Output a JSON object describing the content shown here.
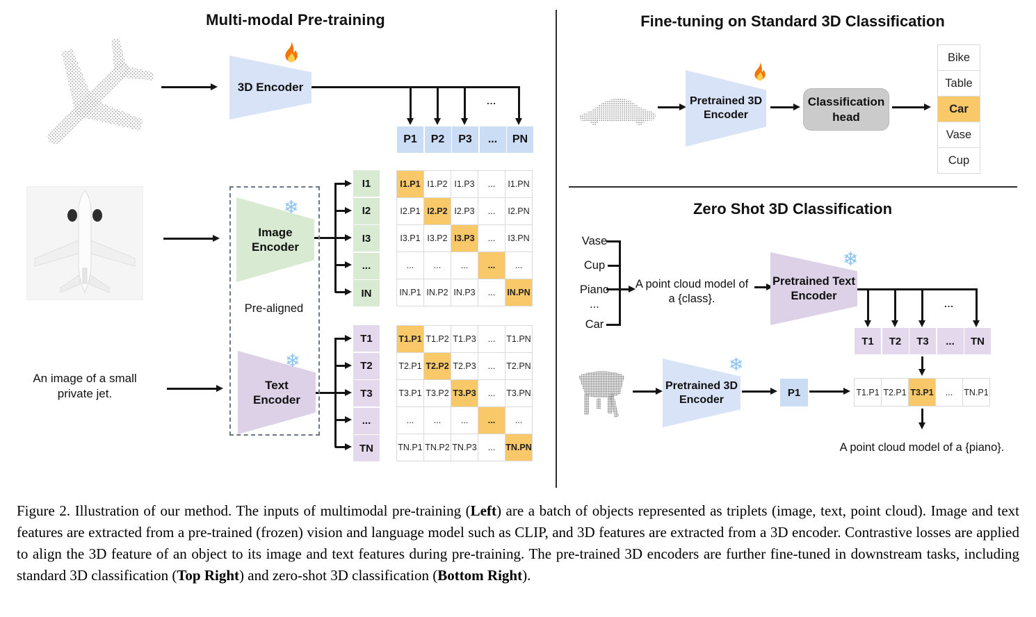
{
  "left_panel": {
    "title": "Multi-modal Pre-training",
    "encoder_3d_label": "3D Encoder",
    "image_encoder_line1": "Image",
    "image_encoder_line2": "Encoder",
    "text_encoder_line1": "Text",
    "text_encoder_line2": "Encoder",
    "pre_aligned_label": "Pre-aligned",
    "input_text_line1": "An image of a small",
    "input_text_line2": "private jet.",
    "fanout_ellipsis": "...",
    "p_row": [
      "P1",
      "P2",
      "P3",
      "...",
      "PN"
    ],
    "image_matrix": {
      "row_labels": [
        "I1",
        "I2",
        "I3",
        "...",
        "IN"
      ],
      "cells": [
        [
          "I1.P1",
          "I1.P2",
          "I1.P3",
          "...",
          "I1.PN"
        ],
        [
          "I2.P1",
          "I2.P2",
          "I2.P3",
          "...",
          "I2.PN"
        ],
        [
          "I3.P1",
          "I3.P2",
          "I3.P3",
          "...",
          "I3.PN"
        ],
        [
          "...",
          "...",
          "...",
          "...",
          "..."
        ],
        [
          "IN.P1",
          "IN.P2",
          "IN.P3",
          "...",
          "IN.PN"
        ]
      ],
      "highlight": "diagonal"
    },
    "text_matrix": {
      "row_labels": [
        "T1",
        "T2",
        "T3",
        "...",
        "TN"
      ],
      "cells": [
        [
          "T1.P1",
          "T1.P2",
          "T1.P3",
          "...",
          "T1.PN"
        ],
        [
          "T2.P1",
          "T2.P2",
          "T2.P3",
          "...",
          "T2.PN"
        ],
        [
          "T3.P1",
          "T3.P2",
          "T3.P3",
          "...",
          "T3.PN"
        ],
        [
          "...",
          "...",
          "...",
          "...",
          "..."
        ],
        [
          "TN.P1",
          "TN.P2",
          "TN.P3",
          "...",
          "TN.PN"
        ]
      ],
      "highlight": "diagonal"
    }
  },
  "top_right_panel": {
    "title": "Fine-tuning on Standard 3D Classification",
    "encoder_line1": "Pretrained 3D",
    "encoder_line2": "Encoder",
    "head_line1": "Classification",
    "head_line2": "head",
    "classes": [
      "Bike",
      "Table",
      "Car",
      "Vase",
      "Cup"
    ],
    "highlighted_class": "Car"
  },
  "bottom_right_panel": {
    "title": "Zero Shot 3D Classification",
    "class_prompts": [
      "Vase",
      "Cup",
      "Piano",
      "...",
      "Car"
    ],
    "prompt_line1": "A point cloud model of",
    "prompt_line2": "a {class}.",
    "text_encoder_line1": "Pretrained Text",
    "text_encoder_line2": "Encoder",
    "fanout_ellipsis": "...",
    "t_row": [
      "T1",
      "T2",
      "T3",
      "...",
      "TN"
    ],
    "encoder_3d_line1": "Pretrained 3D",
    "encoder_3d_line2": "Encoder",
    "p1_label": "P1",
    "similarity_row": [
      "T1.P1",
      "T2.P1",
      "T3.P1",
      "...",
      "TN.P1"
    ],
    "highlighted_cell": "T3.P1",
    "result_text": "A point cloud model of a {piano}."
  },
  "icons": {
    "fire": "fire-icon",
    "snowflake_glyph": "❄"
  },
  "colors": {
    "blue_cell": "#cbdcf5",
    "blue_trapezoid": "#d9e3f7",
    "green": "#d9ead3",
    "purple_cell": "#e4d8ec",
    "purple_trapezoid": "#ddd1e8",
    "highlight_orange": "#f9c868",
    "head_gray": "#cbcbcb",
    "line": "#141414",
    "snowflake_blue": "#8fc4ef"
  },
  "caption": {
    "segments": [
      {
        "text": "Figure 2. Illustration of our method. The inputs of multimodal pre-training (",
        "bold": false
      },
      {
        "text": "Left",
        "bold": true
      },
      {
        "text": ") are a batch of objects represented as triplets (image, text, point cloud). Image and text features are extracted from a pre-trained (frozen) vision and language model such as CLIP, and 3D features are extracted from a 3D encoder. Contrastive losses are applied to align the 3D feature of an object to its image and text features during pre-training. The pre-trained 3D encoders are further fine-tuned in downstream tasks, including standard 3D classification (",
        "bold": false
      },
      {
        "text": "Top Right",
        "bold": true
      },
      {
        "text": ") and zero-shot 3D classification (",
        "bold": false
      },
      {
        "text": "Bottom Right",
        "bold": true
      },
      {
        "text": ").",
        "bold": false
      }
    ]
  }
}
